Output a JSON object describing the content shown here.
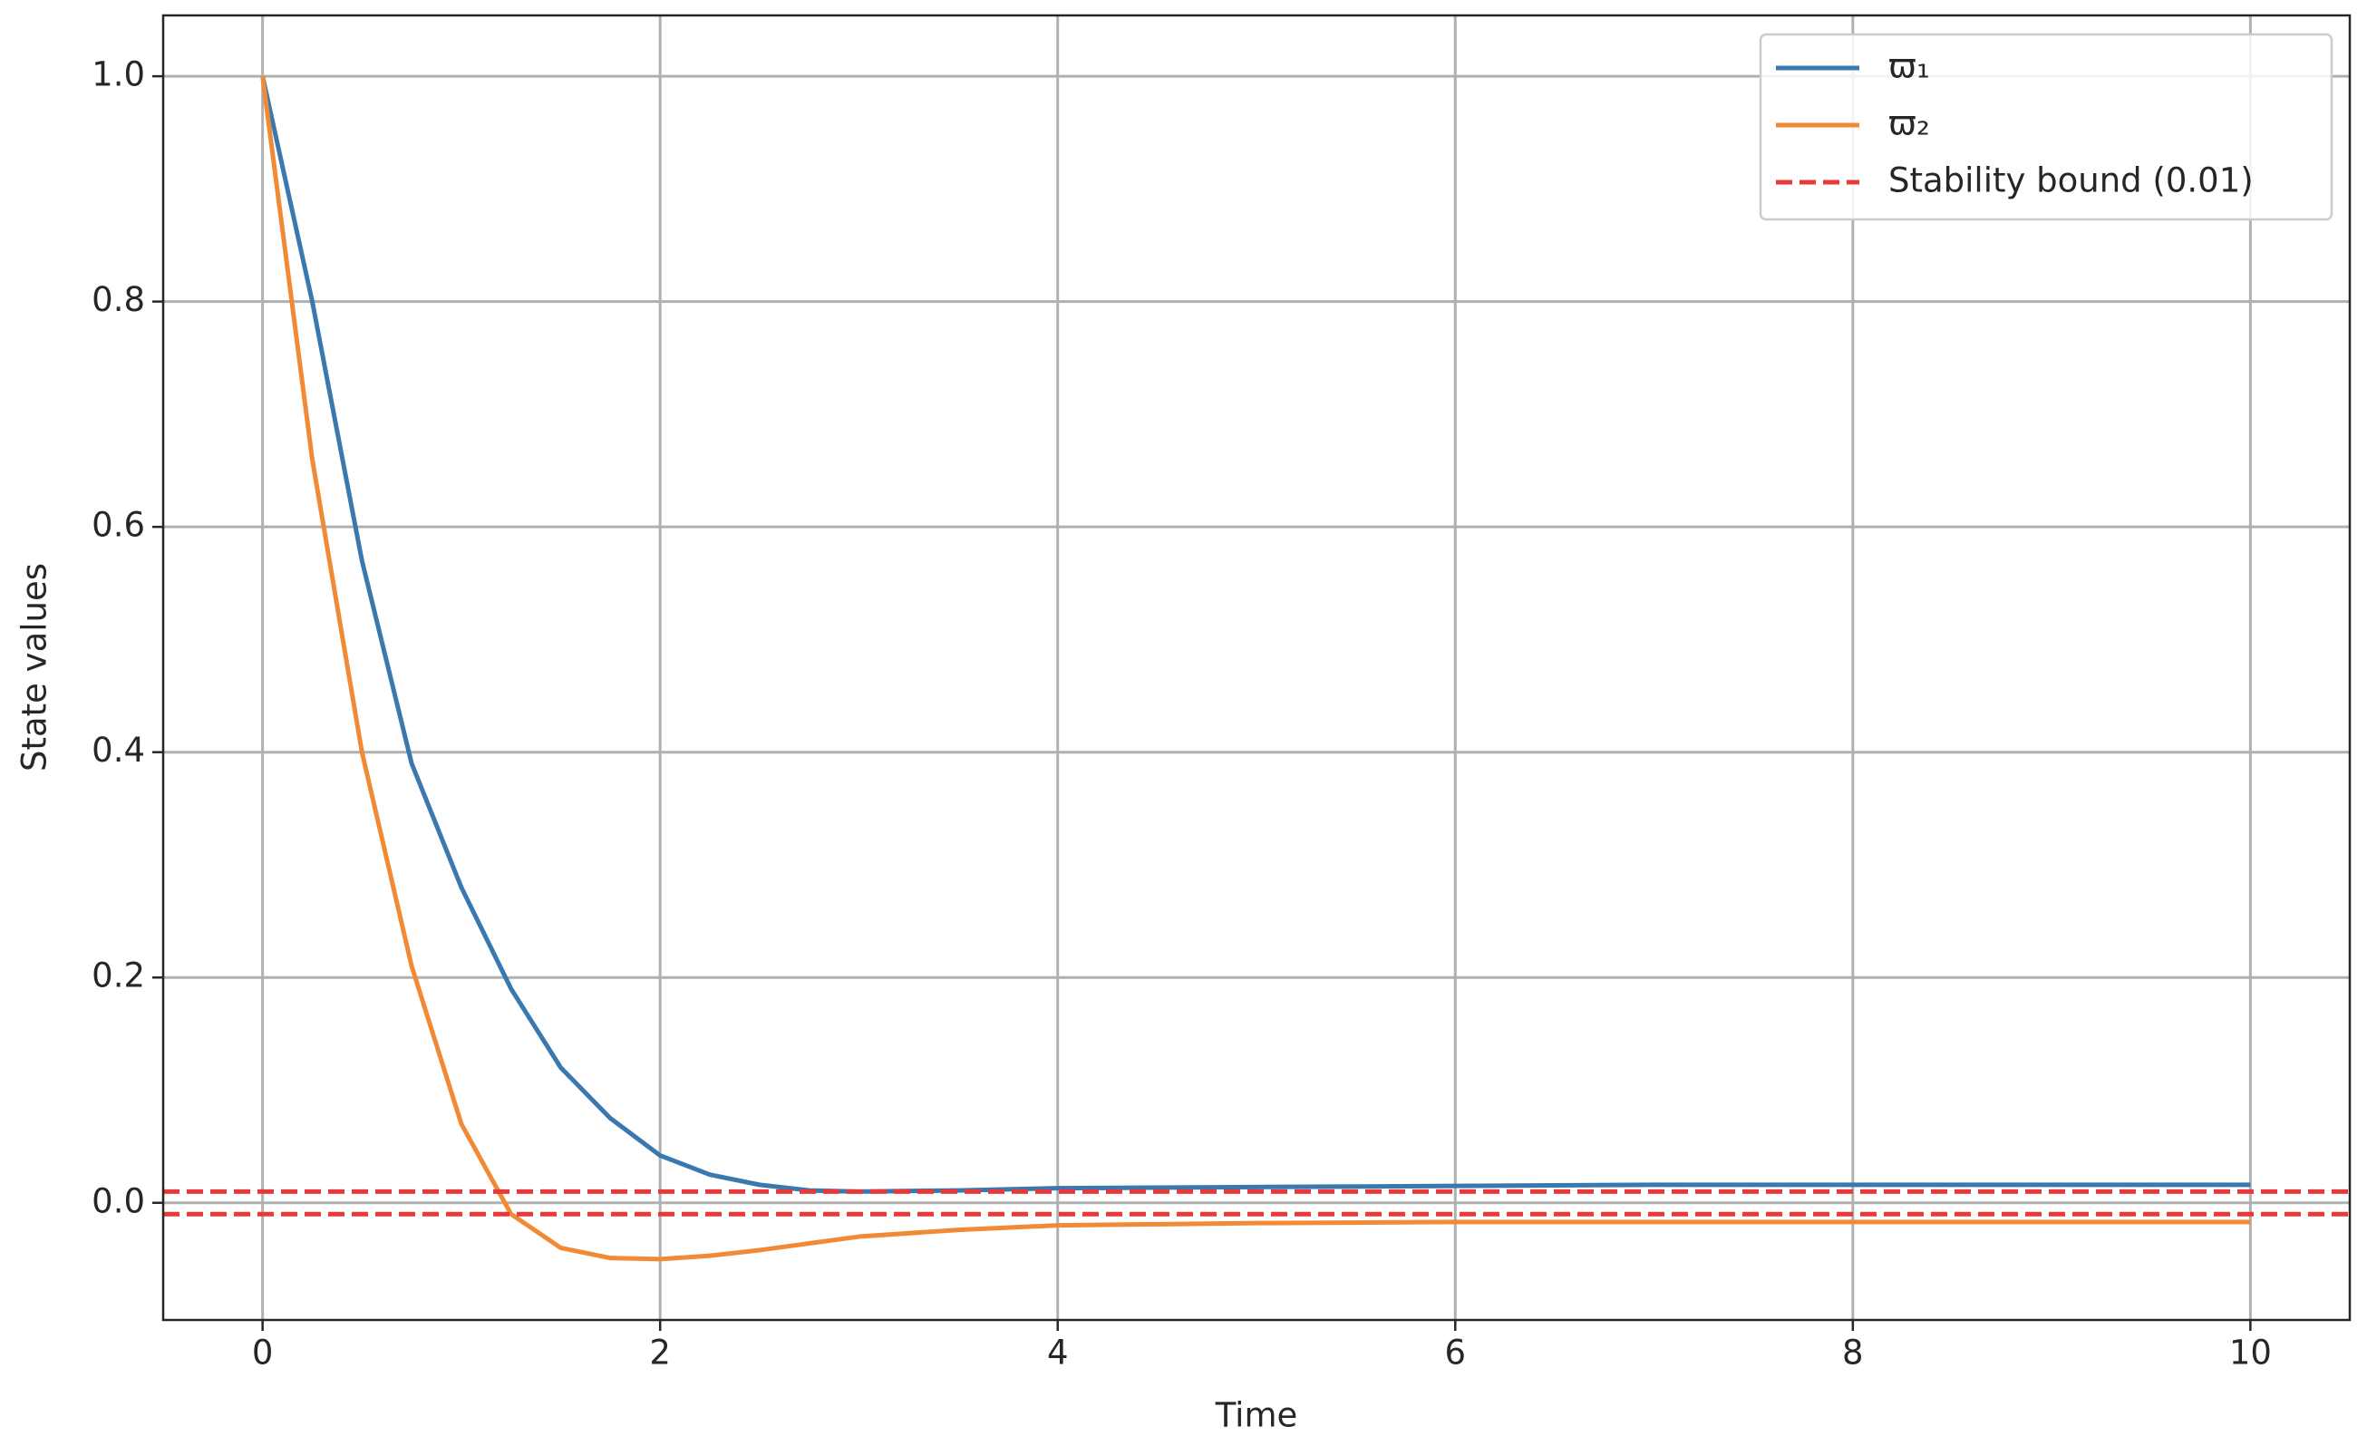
{
  "chart_data": {
    "type": "line",
    "x_label": "Time",
    "y_label": "State values",
    "x": [
      0,
      0.25,
      0.5,
      0.75,
      1,
      1.25,
      1.5,
      1.75,
      2,
      2.25,
      2.5,
      2.75,
      3,
      3.5,
      4,
      5,
      6,
      7,
      8,
      9,
      10
    ],
    "series": [
      {
        "name": "ϖ₁",
        "color": "#3a78b0",
        "values": [
          1.0,
          0.8,
          0.57,
          0.39,
          0.28,
          0.19,
          0.12,
          0.075,
          0.042,
          0.025,
          0.016,
          0.011,
          0.01,
          0.011,
          0.013,
          0.014,
          0.015,
          0.016,
          0.016,
          0.016,
          0.016
        ]
      },
      {
        "name": "ϖ₂",
        "color": "#f28a35",
        "values": [
          1.0,
          0.66,
          0.4,
          0.21,
          0.07,
          -0.01,
          -0.04,
          -0.049,
          -0.05,
          -0.047,
          -0.042,
          -0.036,
          -0.03,
          -0.024,
          -0.02,
          -0.018,
          -0.017,
          -0.017,
          -0.017,
          -0.017,
          -0.017
        ]
      }
    ],
    "reference_lines": {
      "name": "Stability bound (0.01)",
      "color": "#e8393a",
      "values": [
        0.01,
        -0.01
      ]
    },
    "xlim": [
      -0.5,
      10.5
    ],
    "xticks": [
      0,
      2,
      4,
      6,
      8,
      10
    ],
    "ylim": [
      -0.104,
      1.054
    ],
    "yticks": [
      {
        "value": 0,
        "label": "0.0"
      },
      0.2,
      0.4,
      0.6,
      0.8,
      {
        "value": 1,
        "label": "1.0"
      }
    ],
    "grid": true,
    "legend": "upper right"
  }
}
